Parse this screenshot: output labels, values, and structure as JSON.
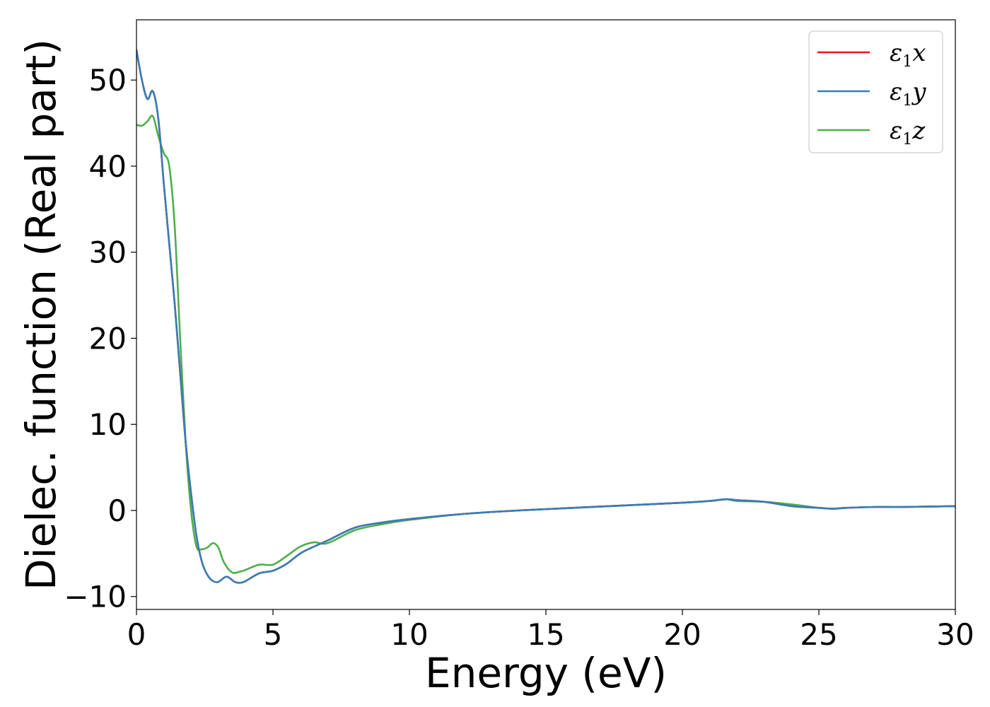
{
  "chart_data": {
    "type": "line",
    "title": "",
    "xlabel": "Energy (eV)",
    "ylabel": "Dielec. function (Real part)",
    "xlim": [
      0,
      30
    ],
    "ylim": [
      -11.5,
      57
    ],
    "xticks": [
      0,
      5,
      10,
      15,
      20,
      25,
      30
    ],
    "yticks": [
      -10,
      0,
      10,
      20,
      30,
      40,
      50
    ],
    "grid": false,
    "legend_position": "top-right",
    "series": [
      {
        "name": "ε₁x",
        "label_base": "ε",
        "label_sub": "1",
        "label_tail": "x",
        "color": "#e41a1c",
        "x": [
          0,
          0.2,
          0.4,
          0.6,
          0.8,
          1.0,
          1.2,
          1.4,
          1.6,
          1.8,
          2.0,
          2.2,
          2.4,
          2.6,
          2.8,
          3.0,
          3.3,
          3.6,
          3.8,
          4.0,
          4.5,
          5.0,
          5.5,
          6.0,
          6.5,
          7.0,
          8.0,
          9.0,
          10.0,
          12.0,
          14.0,
          16.0,
          18.0,
          20.0,
          21.0,
          21.6,
          22.0,
          23.0,
          24.0,
          25.0,
          25.5,
          26.0,
          27.0,
          28.0,
          30.0
        ],
        "y": [
          53.5,
          50.0,
          47.8,
          48.7,
          45.5,
          38.0,
          31.0,
          24.0,
          16.0,
          8.0,
          2.0,
          -3.0,
          -6.0,
          -7.5,
          -8.2,
          -8.3,
          -7.7,
          -8.3,
          -8.4,
          -8.2,
          -7.3,
          -7.0,
          -6.2,
          -5.0,
          -4.2,
          -3.5,
          -2.0,
          -1.4,
          -1.0,
          -0.4,
          0.0,
          0.3,
          0.6,
          0.9,
          1.1,
          1.3,
          1.2,
          1.0,
          0.5,
          0.3,
          0.2,
          0.3,
          0.4,
          0.4,
          0.5
        ]
      },
      {
        "name": "ε₁y",
        "label_base": "ε",
        "label_sub": "1",
        "label_tail": "y",
        "color": "#377eb8",
        "x": [
          0,
          0.2,
          0.4,
          0.6,
          0.8,
          1.0,
          1.2,
          1.4,
          1.6,
          1.8,
          2.0,
          2.2,
          2.4,
          2.6,
          2.8,
          3.0,
          3.3,
          3.6,
          3.8,
          4.0,
          4.5,
          5.0,
          5.5,
          6.0,
          6.5,
          7.0,
          8.0,
          9.0,
          10.0,
          12.0,
          14.0,
          16.0,
          18.0,
          20.0,
          21.0,
          21.6,
          22.0,
          23.0,
          24.0,
          25.0,
          25.5,
          26.0,
          27.0,
          28.0,
          30.0
        ],
        "y": [
          53.5,
          50.0,
          47.8,
          48.7,
          45.5,
          38.0,
          31.0,
          24.0,
          16.0,
          8.0,
          2.0,
          -3.0,
          -6.0,
          -7.5,
          -8.2,
          -8.3,
          -7.7,
          -8.3,
          -8.4,
          -8.2,
          -7.3,
          -7.0,
          -6.2,
          -5.0,
          -4.2,
          -3.5,
          -2.0,
          -1.4,
          -1.0,
          -0.4,
          0.0,
          0.3,
          0.6,
          0.9,
          1.1,
          1.3,
          1.2,
          1.0,
          0.5,
          0.3,
          0.2,
          0.3,
          0.4,
          0.4,
          0.5
        ]
      },
      {
        "name": "ε₁z",
        "label_base": "ε",
        "label_sub": "1",
        "label_tail": "z",
        "color": "#4daf4a",
        "x": [
          0,
          0.2,
          0.4,
          0.6,
          0.8,
          1.0,
          1.2,
          1.4,
          1.6,
          1.8,
          2.0,
          2.2,
          2.4,
          2.6,
          2.8,
          3.0,
          3.2,
          3.5,
          3.8,
          4.0,
          4.5,
          5.0,
          5.5,
          6.0,
          6.5,
          7.0,
          8.0,
          9.0,
          10.0,
          12.0,
          14.0,
          16.0,
          18.0,
          20.0,
          21.0,
          21.6,
          22.0,
          23.0,
          24.0,
          25.0,
          25.5,
          26.0,
          27.0,
          28.0,
          30.0
        ],
        "y": [
          44.8,
          44.7,
          45.2,
          45.8,
          43.5,
          41.5,
          40.0,
          33.0,
          20.0,
          8.0,
          0.0,
          -4.2,
          -4.5,
          -4.3,
          -3.8,
          -4.3,
          -6.0,
          -7.2,
          -7.1,
          -6.9,
          -6.3,
          -6.3,
          -5.3,
          -4.2,
          -3.7,
          -3.8,
          -2.3,
          -1.6,
          -1.1,
          -0.4,
          0.0,
          0.3,
          0.6,
          0.9,
          1.1,
          1.3,
          1.1,
          1.0,
          0.7,
          0.3,
          0.2,
          0.3,
          0.4,
          0.4,
          0.5
        ]
      }
    ]
  }
}
